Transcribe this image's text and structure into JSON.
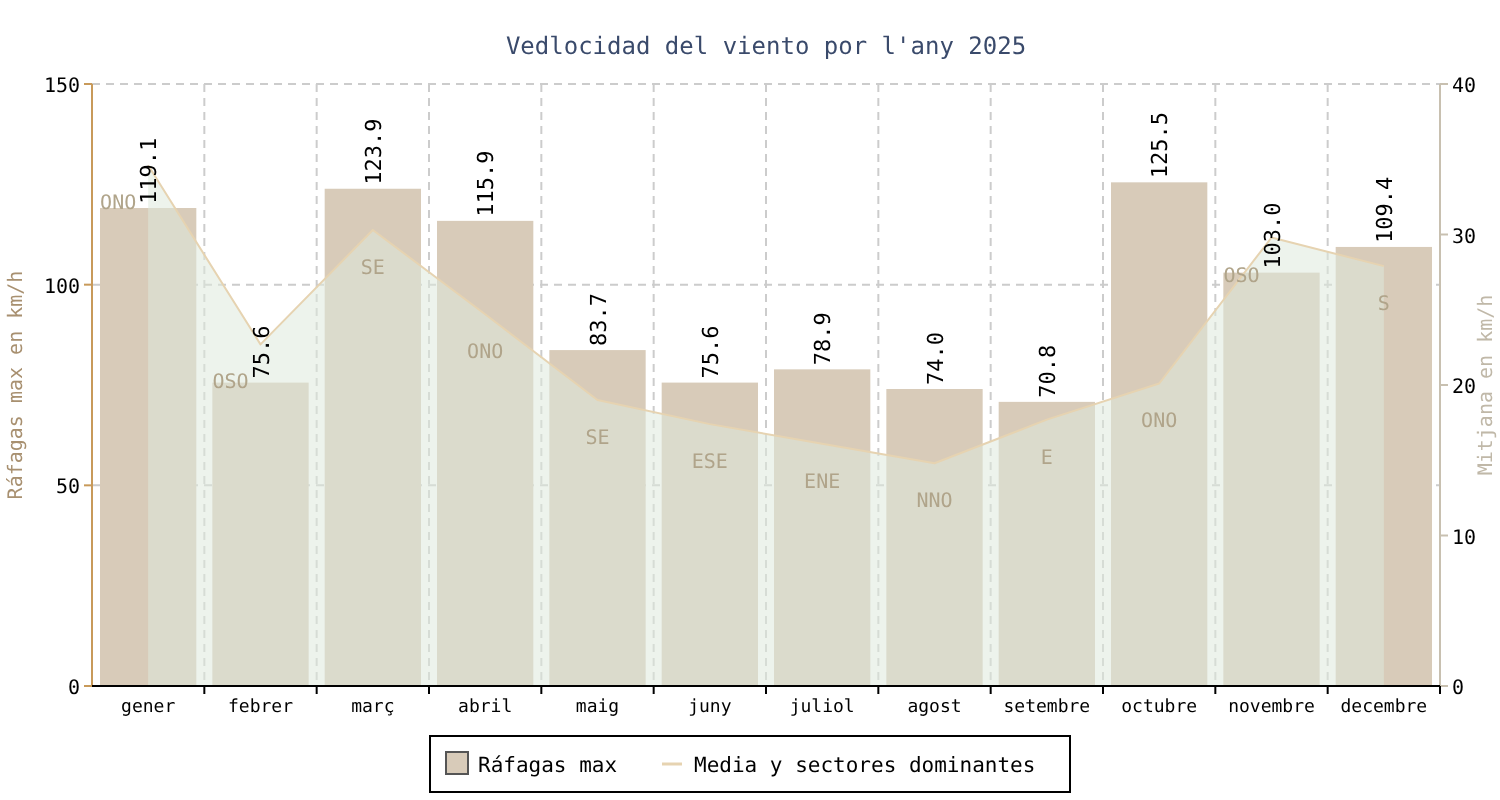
{
  "chart_data": {
    "type": "bar",
    "title": "Vedlocidad del viento por l'any 2025",
    "ylabel": "Ráfagas max en km/h",
    "y2label": "Mitjana en km/h",
    "categories": [
      "gener",
      "febrer",
      "març",
      "abril",
      "maig",
      "juny",
      "juliol",
      "agost",
      "setembre",
      "octubre",
      "novembre",
      "decembre"
    ],
    "series": [
      {
        "name": "Ráfagas max",
        "color": "#d8cbb9",
        "values": [
          119.1,
          75.6,
          123.9,
          115.9,
          83.7,
          75.6,
          78.9,
          74.0,
          70.8,
          125.5,
          103.0,
          109.4
        ],
        "value_labels": [
          "119.1",
          "75.6",
          "123.9",
          "115.9",
          "83.7",
          "75.6",
          "78.9",
          "74.0",
          "70.8",
          "125.5",
          "103.0",
          "109.4"
        ]
      },
      {
        "name": "Media y sectores dominantes",
        "type": "area",
        "axis": "y2",
        "color": "#e6d3b1",
        "values": [
          34.6,
          22.7,
          30.3,
          24.7,
          19.0,
          17.4,
          16.1,
          14.8,
          17.7,
          20.1,
          29.8,
          27.9
        ],
        "value_labels": [
          "ONO",
          "OSO",
          "SE",
          "ONO",
          "SE",
          "ESE",
          "ENE",
          "NNO",
          "E",
          "ONO",
          "OSO",
          "S"
        ]
      }
    ],
    "ylim": [
      0,
      150
    ],
    "yticks": [
      0,
      50,
      100,
      150
    ],
    "y2lim": [
      0,
      40
    ],
    "y2ticks": [
      0,
      10,
      20,
      30,
      40
    ],
    "grid": true,
    "legend": "bottom"
  }
}
